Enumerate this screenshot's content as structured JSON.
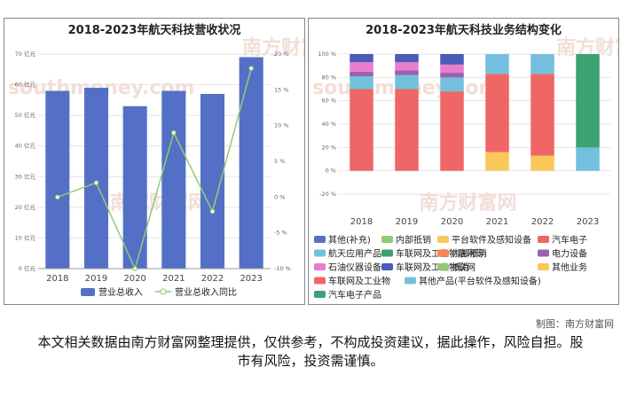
{
  "charts": [
    {
      "type": "bar+line",
      "title": "2018-2023年航天科技营收状况",
      "categories": [
        "2018",
        "2019",
        "2020",
        "2021",
        "2022",
        "2023"
      ],
      "left_axis": {
        "ticks": [
          "0 亿元",
          "10 亿元",
          "20 亿元",
          "30 亿元",
          "40 亿元",
          "50 亿元",
          "60 亿元",
          "70 亿元"
        ],
        "range": [
          0,
          70
        ]
      },
      "right_axis": {
        "ticks": [
          "-10 %",
          "-5 %",
          "0 %",
          "5 %",
          "10 %",
          "15 %",
          "20 %"
        ],
        "range": [
          -10,
          20
        ]
      },
      "series": [
        {
          "name": "营业总收入",
          "kind": "bar",
          "color": "#5470c6",
          "values": [
            58,
            59,
            53,
            58,
            57,
            69
          ]
        },
        {
          "name": "营业总收入同比",
          "kind": "line",
          "color": "#91cc75",
          "values": [
            0,
            2,
            -10,
            9,
            -2,
            18
          ]
        }
      ],
      "legend": [
        "营业总收入",
        "营业总收入同比"
      ]
    },
    {
      "type": "stacked-bar",
      "title": "2018-2023年航天科技业务结构变化",
      "categories": [
        "2018",
        "2019",
        "2020",
        "2021",
        "2022",
        "2023"
      ],
      "y_axis": {
        "ticks": [
          "-20 %",
          "0 %",
          "20 %",
          "40 %",
          "60 %",
          "80 %",
          "100 %"
        ],
        "range": [
          -20,
          100
        ]
      },
      "series": [
        {
          "name": "其他(补充)",
          "color": "#5470c6",
          "values": [
            0,
            0,
            0,
            0,
            0,
            0
          ]
        },
        {
          "name": "内部抵销",
          "color": "#91cc75",
          "values": [
            0,
            0,
            0,
            0,
            0,
            0
          ]
        },
        {
          "name": "平台软件及感知设备",
          "color": "#fac858",
          "values": [
            0,
            0,
            0,
            16,
            13,
            0
          ]
        },
        {
          "name": "汽车电子",
          "color": "#ee6666",
          "values": [
            70,
            70,
            68,
            67,
            70,
            0
          ]
        },
        {
          "name": "航天应用产品",
          "color": "#73c0de",
          "values": [
            11,
            12,
            12,
            0,
            0,
            0
          ]
        },
        {
          "name": "车联网及工业物联网等",
          "color": "#3ba272",
          "values": [
            0,
            0,
            0,
            0,
            0,
            0
          ]
        },
        {
          "name": "内部抵消",
          "color": "#fc8452",
          "values": [
            0,
            0,
            0,
            0,
            0,
            0
          ]
        },
        {
          "name": "电力设备",
          "color": "#9a60b4",
          "values": [
            4,
            4,
            4,
            0,
            0,
            0
          ]
        },
        {
          "name": "石油仪器设备",
          "color": "#ea7ccc",
          "values": [
            8,
            7,
            7,
            0,
            0,
            0
          ]
        },
        {
          "name": "车联网及工业物联网",
          "color": "#4a5bb8",
          "values": [
            7,
            7,
            9,
            0,
            0,
            0
          ]
        },
        {
          "name": "抵消",
          "color": "#91cc75",
          "values": [
            0,
            0,
            0,
            0,
            0,
            0
          ]
        },
        {
          "name": "其他业务",
          "color": "#fac858",
          "values": [
            0,
            0,
            0,
            0,
            0,
            0
          ]
        },
        {
          "name": "车联网及工业物",
          "color": "#ee6666",
          "values": [
            0,
            0,
            0,
            0,
            0,
            0
          ]
        },
        {
          "name": "其他产品(平台软件及感知设备)",
          "color": "#73c0de",
          "values": [
            0,
            0,
            0,
            17,
            17,
            20
          ]
        },
        {
          "name": "汽车电子产品",
          "color": "#3ba272",
          "values": [
            0,
            0,
            0,
            0,
            0,
            80
          ]
        }
      ]
    }
  ],
  "watermark": "南方财富网",
  "watermark_sub": "southmoney.com",
  "credit": "制图：南方财富网",
  "disclaimer": "本文相关数据由南方财富网整理提供，仅供参考，不构成投资建议，据此操作，风险自担。股市有风险，投资需谨慎。"
}
